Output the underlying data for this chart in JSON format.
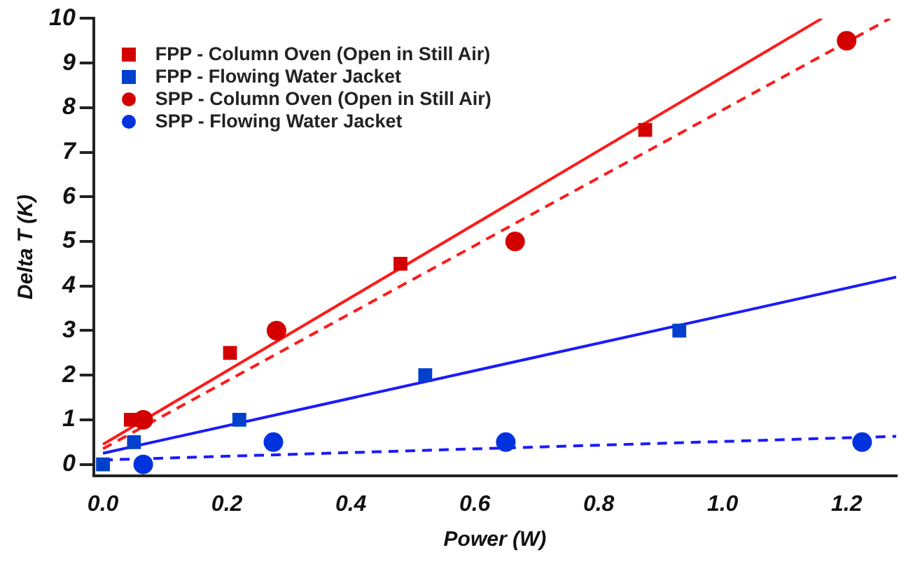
{
  "chart_data": {
    "type": "scatter",
    "xlabel": "Power (W)",
    "ylabel": "Delta T (K)",
    "xlim": [
      -0.015,
      1.28
    ],
    "ylim": [
      -0.25,
      10
    ],
    "xticks": [
      {
        "value": 0,
        "label": "0.0"
      },
      {
        "value": 0.2,
        "label": "0.2"
      },
      {
        "value": 0.4,
        "label": "0.4"
      },
      {
        "value": 0.6,
        "label": "0.6"
      },
      {
        "value": 0.8,
        "label": "0.8"
      },
      {
        "value": 1,
        "label": "1.0"
      },
      {
        "value": 1.2,
        "label": "1.2"
      }
    ],
    "yticks": [
      0,
      1,
      2,
      3,
      4,
      5,
      6,
      7,
      8,
      9,
      10
    ],
    "grid": false,
    "legend": "top left",
    "series": [
      {
        "name": "FPP - Column Oven (Open in Still Air)",
        "color": "#d40000",
        "marker": "square",
        "x": [
          0.045,
          0.205,
          0.48,
          0.875
        ],
        "values": [
          1,
          2.5,
          4.5,
          7.5
        ]
      },
      {
        "name": "FPP - Flowing Water Jacket",
        "color": "#0040cc",
        "marker": "square",
        "x": [
          0,
          0.05,
          0.22,
          0.52,
          0.93
        ],
        "values": [
          0,
          0.5,
          1,
          2,
          3
        ]
      },
      {
        "name": "SPP - Column Oven (Open in Still Air)",
        "color": "#d40000",
        "marker": "circle",
        "x": [
          0.065,
          0.28,
          0.665,
          1.2
        ],
        "values": [
          1,
          3,
          5,
          9.5
        ]
      },
      {
        "name": "SPP - Flowing Water Jacket",
        "color": "#0033dd",
        "marker": "circle",
        "x": [
          0.065,
          0.275,
          0.65,
          1.225
        ],
        "values": [
          0,
          0.5,
          0.5,
          0.5
        ]
      },
      {
        "type": "line",
        "color": "#ff1a1a",
        "marker": "none",
        "line_style": "solid",
        "x": [
          0,
          1.16
        ],
        "values": [
          0.45,
          10
        ]
      },
      {
        "type": "line",
        "color": "#ff1a1a",
        "marker": "none",
        "line_style": "dashed",
        "x": [
          0,
          1.27
        ],
        "values": [
          0.35,
          10
        ]
      },
      {
        "type": "line",
        "color": "#1a1aff",
        "marker": "none",
        "line_style": "solid",
        "x": [
          0,
          1.28
        ],
        "values": [
          0.25,
          4.2
        ]
      },
      {
        "type": "line",
        "color": "#1a1aff",
        "marker": "none",
        "line_style": "dashed",
        "x": [
          0,
          1.28
        ],
        "values": [
          0.1,
          0.63
        ]
      }
    ]
  }
}
